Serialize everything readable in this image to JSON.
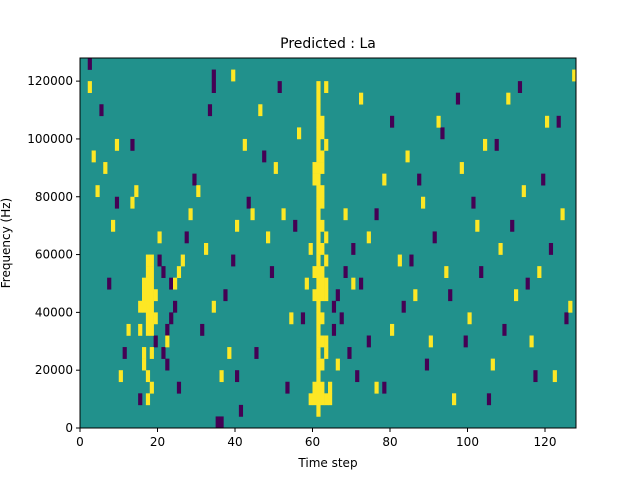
{
  "chart_data": {
    "type": "heatmap",
    "title": "Predicted : La",
    "xlabel": "Time step",
    "ylabel": "Frequency (Hz)",
    "xlim": [
      0,
      128
    ],
    "ylim": [
      0,
      128000
    ],
    "x_ticks": [
      0,
      20,
      40,
      60,
      80,
      100,
      120
    ],
    "x_tick_labels": [
      "0",
      "20",
      "40",
      "60",
      "80",
      "100",
      "120"
    ],
    "y_ticks": [
      0,
      20000,
      40000,
      60000,
      80000,
      100000,
      120000
    ],
    "y_tick_labels": [
      "0",
      "20000",
      "40000",
      "60000",
      "80000",
      "100000",
      "120000"
    ],
    "grid": false,
    "colormap": "viridis",
    "value_levels": [
      -1,
      0,
      1
    ],
    "colors": {
      "low": "#440154",
      "mid": "#21918c",
      "high": "#fde725"
    },
    "background_value": 0,
    "grid_shape": {
      "cols": 128,
      "rows": 32
    },
    "cells": {
      "high": [
        [
          17,
          8
        ],
        [
          17,
          9
        ],
        [
          17,
          10
        ],
        [
          17,
          11
        ],
        [
          17,
          12
        ],
        [
          17,
          13
        ],
        [
          17,
          14
        ],
        [
          18,
          8
        ],
        [
          18,
          9
        ],
        [
          18,
          10
        ],
        [
          18,
          11
        ],
        [
          18,
          12
        ],
        [
          18,
          13
        ],
        [
          18,
          14
        ],
        [
          16,
          10
        ],
        [
          16,
          11
        ],
        [
          16,
          12
        ],
        [
          19,
          9
        ],
        [
          19,
          11
        ],
        [
          15,
          8
        ],
        [
          15,
          10
        ],
        [
          16,
          6
        ],
        [
          16,
          5
        ],
        [
          17,
          4
        ],
        [
          18,
          3
        ],
        [
          17,
          2
        ],
        [
          18,
          6
        ],
        [
          61,
          1
        ],
        [
          61,
          2
        ],
        [
          61,
          3
        ],
        [
          61,
          4
        ],
        [
          61,
          5
        ],
        [
          61,
          6
        ],
        [
          61,
          7
        ],
        [
          61,
          8
        ],
        [
          61,
          9
        ],
        [
          61,
          10
        ],
        [
          61,
          11
        ],
        [
          61,
          12
        ],
        [
          61,
          13
        ],
        [
          61,
          14
        ],
        [
          61,
          15
        ],
        [
          61,
          16
        ],
        [
          61,
          17
        ],
        [
          61,
          18
        ],
        [
          61,
          19
        ],
        [
          61,
          20
        ],
        [
          61,
          21
        ],
        [
          61,
          22
        ],
        [
          61,
          23
        ],
        [
          61,
          24
        ],
        [
          61,
          25
        ],
        [
          61,
          26
        ],
        [
          61,
          27
        ],
        [
          61,
          28
        ],
        [
          61,
          29
        ],
        [
          62,
          2
        ],
        [
          62,
          3
        ],
        [
          62,
          5
        ],
        [
          62,
          7
        ],
        [
          62,
          9
        ],
        [
          62,
          11
        ],
        [
          62,
          12
        ],
        [
          62,
          13
        ],
        [
          62,
          15
        ],
        [
          62,
          17
        ],
        [
          62,
          19
        ],
        [
          62,
          20
        ],
        [
          62,
          22
        ],
        [
          62,
          23
        ],
        [
          62,
          25
        ],
        [
          62,
          26
        ],
        [
          63,
          2
        ],
        [
          63,
          6
        ],
        [
          63,
          7
        ],
        [
          63,
          11
        ],
        [
          63,
          12
        ],
        [
          63,
          14
        ],
        [
          63,
          16
        ],
        [
          63,
          24
        ],
        [
          63,
          29
        ],
        [
          60,
          2
        ],
        [
          60,
          3
        ],
        [
          60,
          11
        ],
        [
          60,
          13
        ],
        [
          60,
          21
        ],
        [
          60,
          22
        ],
        [
          64,
          2
        ],
        [
          64,
          3
        ],
        [
          59,
          2
        ],
        [
          59,
          15
        ],
        [
          2,
          29
        ],
        [
          3,
          23
        ],
        [
          4,
          20
        ],
        [
          6,
          22
        ],
        [
          8,
          17
        ],
        [
          9,
          24
        ],
        [
          10,
          4
        ],
        [
          12,
          8
        ],
        [
          13,
          19
        ],
        [
          14,
          20
        ],
        [
          20,
          16
        ],
        [
          22,
          7
        ],
        [
          24,
          12
        ],
        [
          25,
          13
        ],
        [
          26,
          14
        ],
        [
          28,
          18
        ],
        [
          30,
          20
        ],
        [
          32,
          15
        ],
        [
          34,
          10
        ],
        [
          36,
          4
        ],
        [
          38,
          6
        ],
        [
          39,
          30
        ],
        [
          40,
          17
        ],
        [
          42,
          24
        ],
        [
          44,
          18
        ],
        [
          46,
          27
        ],
        [
          48,
          16
        ],
        [
          50,
          22
        ],
        [
          52,
          18
        ],
        [
          54,
          9
        ],
        [
          56,
          25
        ],
        [
          58,
          12
        ],
        [
          66,
          5
        ],
        [
          68,
          18
        ],
        [
          70,
          12
        ],
        [
          72,
          28
        ],
        [
          74,
          16
        ],
        [
          76,
          3
        ],
        [
          78,
          21
        ],
        [
          80,
          8
        ],
        [
          82,
          14
        ],
        [
          84,
          23
        ],
        [
          86,
          11
        ],
        [
          88,
          19
        ],
        [
          90,
          7
        ],
        [
          92,
          26
        ],
        [
          94,
          13
        ],
        [
          96,
          2
        ],
        [
          98,
          22
        ],
        [
          100,
          9
        ],
        [
          102,
          17
        ],
        [
          104,
          24
        ],
        [
          106,
          5
        ],
        [
          108,
          15
        ],
        [
          110,
          28
        ],
        [
          112,
          11
        ],
        [
          114,
          20
        ],
        [
          116,
          7
        ],
        [
          118,
          13
        ],
        [
          120,
          26
        ],
        [
          122,
          4
        ],
        [
          124,
          18
        ],
        [
          126,
          10
        ],
        [
          127,
          30
        ]
      ],
      "low": [
        [
          19,
          7
        ],
        [
          21,
          6
        ],
        [
          22,
          5
        ],
        [
          22,
          8
        ],
        [
          23,
          9
        ],
        [
          23,
          12
        ],
        [
          24,
          10
        ],
        [
          25,
          3
        ],
        [
          21,
          13
        ],
        [
          20,
          14
        ],
        [
          39,
          14
        ],
        [
          40,
          4
        ],
        [
          41,
          1
        ],
        [
          36,
          0
        ],
        [
          35,
          0
        ],
        [
          34,
          29
        ],
        [
          34,
          30
        ],
        [
          65,
          8
        ],
        [
          65,
          10
        ],
        [
          66,
          11
        ],
        [
          67,
          9
        ],
        [
          68,
          13
        ],
        [
          69,
          6
        ],
        [
          70,
          15
        ],
        [
          71,
          4
        ],
        [
          72,
          12
        ],
        [
          74,
          7
        ],
        [
          76,
          18
        ],
        [
          78,
          3
        ],
        [
          80,
          26
        ],
        [
          83,
          10
        ],
        [
          2,
          31
        ],
        [
          5,
          27
        ],
        [
          7,
          12
        ],
        [
          9,
          19
        ],
        [
          11,
          6
        ],
        [
          13,
          24
        ],
        [
          15,
          2
        ],
        [
          27,
          16
        ],
        [
          29,
          21
        ],
        [
          31,
          8
        ],
        [
          33,
          27
        ],
        [
          37,
          11
        ],
        [
          43,
          19
        ],
        [
          45,
          6
        ],
        [
          47,
          23
        ],
        [
          49,
          13
        ],
        [
          51,
          29
        ],
        [
          53,
          3
        ],
        [
          55,
          17
        ],
        [
          57,
          9
        ],
        [
          85,
          14
        ],
        [
          87,
          21
        ],
        [
          89,
          5
        ],
        [
          91,
          16
        ],
        [
          93,
          25
        ],
        [
          95,
          11
        ],
        [
          97,
          28
        ],
        [
          99,
          7
        ],
        [
          101,
          19
        ],
        [
          103,
          13
        ],
        [
          105,
          2
        ],
        [
          107,
          24
        ],
        [
          109,
          8
        ],
        [
          111,
          17
        ],
        [
          113,
          29
        ],
        [
          115,
          12
        ],
        [
          117,
          4
        ],
        [
          119,
          21
        ],
        [
          121,
          15
        ],
        [
          123,
          26
        ],
        [
          125,
          9
        ]
      ]
    }
  }
}
